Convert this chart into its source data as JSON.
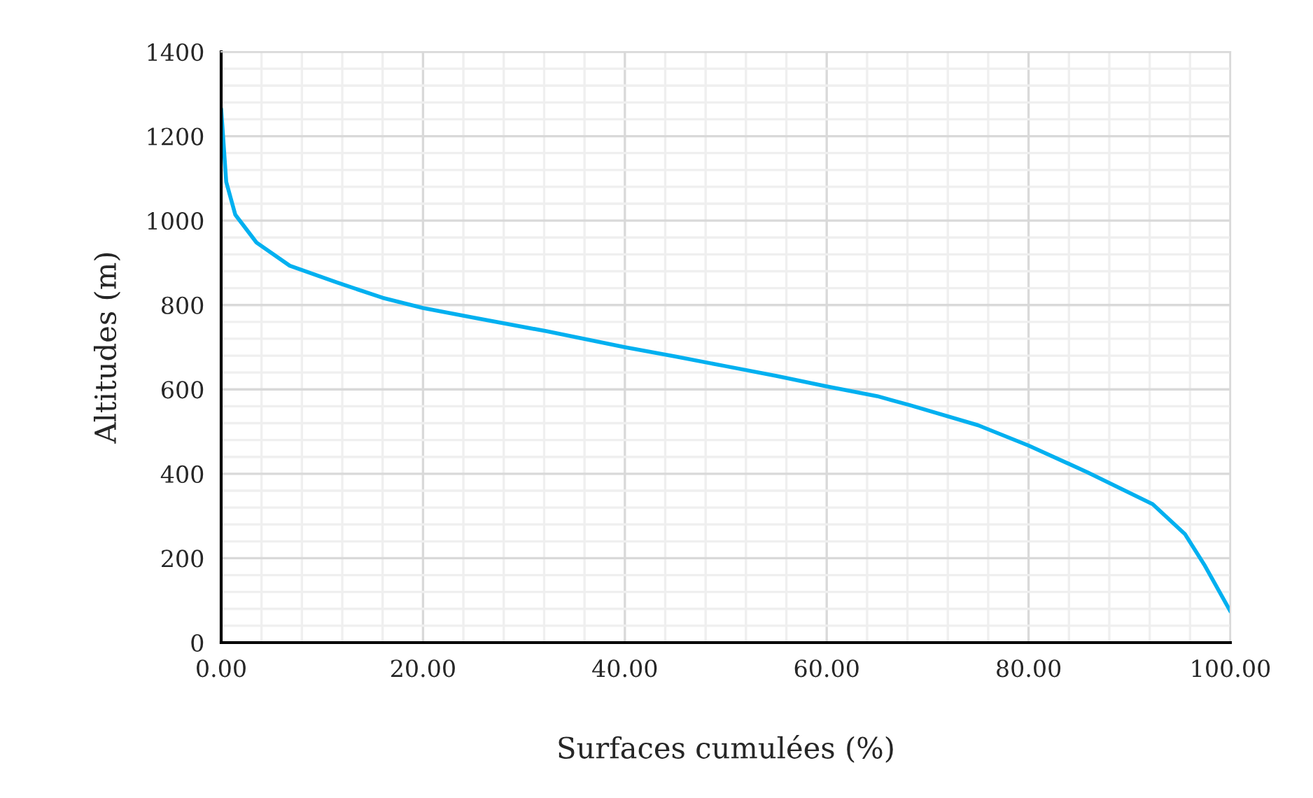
{
  "chart_data": {
    "type": "line",
    "xlabel": "Surfaces cumulées (%)",
    "ylabel": "Altitudes (m)",
    "x": [
      0,
      0.5,
      1.4,
      3.5,
      6.8,
      11.4,
      16,
      20,
      25,
      32.2,
      40,
      45,
      50,
      55,
      60,
      65,
      68.2,
      75,
      80,
      85.8,
      92.3,
      95.5,
      97.4,
      100
    ],
    "series": [
      {
        "color": "#00b0f0",
        "values": [
          1265,
          1092,
          1014,
          948,
          893,
          854,
          817,
          793,
          770,
          738,
          700,
          678,
          655,
          632,
          607,
          584,
          563,
          515,
          467,
          404,
          328,
          257,
          185,
          74
        ]
      }
    ],
    "xlim": [
      0,
      100
    ],
    "xticks": [
      {
        "value": 0,
        "label": "0.00"
      },
      {
        "value": 20,
        "label": "20.00"
      },
      {
        "value": 40,
        "label": "40.00"
      },
      {
        "value": 60,
        "label": "60.00"
      },
      {
        "value": 80,
        "label": "80.00"
      },
      {
        "value": 100,
        "label": "100.00"
      }
    ],
    "ylim": [
      0,
      1400
    ],
    "yticks": [
      0,
      200,
      400,
      600,
      800,
      1000,
      1200,
      1400
    ],
    "grid": true,
    "legend": false,
    "marker": "none",
    "line_style": "solid"
  }
}
